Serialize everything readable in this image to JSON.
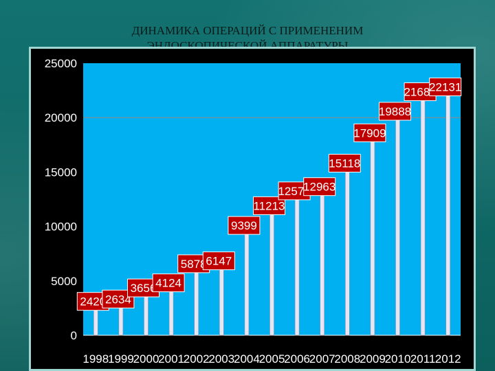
{
  "slide": {
    "title_line1": "ДИНАМИКА ОПЕРАЦИЙ С ПРИМЕНЕНИМ",
    "title_line2": "ЭНДОСКОПИЧЕСКОЙ АППАРАТУРЫ"
  },
  "colors": {
    "plot_area": "#00b0f0",
    "bar": "#e6e6f2",
    "label_bg": "#c00000",
    "label_border": "#ffffff"
  },
  "chart_data": {
    "type": "bar",
    "categories": [
      "1998",
      "1999",
      "2000",
      "2001",
      "2002",
      "2003",
      "2004",
      "2005",
      "2006",
      "2007",
      "2008",
      "2009",
      "2010",
      "2011",
      "2012"
    ],
    "values": [
      2420,
      2634,
      3656,
      4124,
      5878,
      6147,
      9399,
      11213,
      12574,
      12963,
      15118,
      17909,
      19888,
      21684,
      22131
    ],
    "ylim": [
      0,
      25000
    ],
    "yticks": [
      "0",
      "5000",
      "10000",
      "15000",
      "20000",
      "25000"
    ],
    "grid": "horizontal at 20000",
    "title": "",
    "xlabel": "",
    "ylabel": ""
  }
}
